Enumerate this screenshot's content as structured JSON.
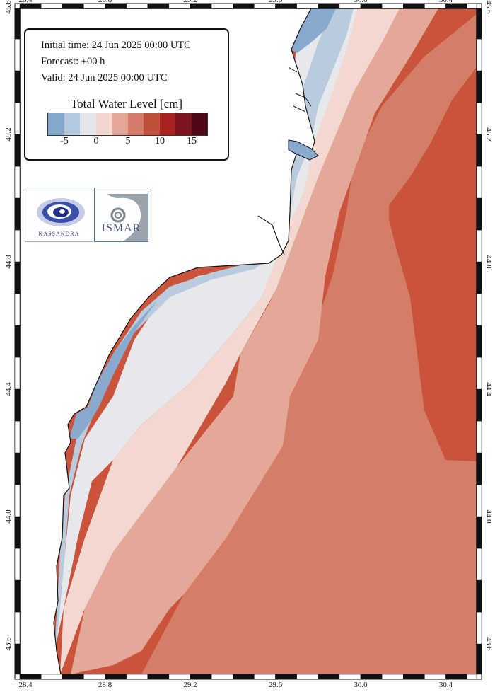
{
  "map": {
    "info_lines": [
      "Initial time: 24 Jun 2025 00:00 UTC",
      "Forecast: +00 h",
      "Valid: 24 Jun 2025 00:00 UTC"
    ],
    "legend_title": "Total Water Level [cm]",
    "colorbar_colors": [
      "#85a9cc",
      "#b4c9dd",
      "#e5e6eb",
      "#f2d7cf",
      "#e4a696",
      "#d37b68",
      "#c04f3b",
      "#a8231f",
      "#7d1422",
      "#4d0a16"
    ],
    "colorbar_labels": [
      "-5",
      "0",
      "5",
      "10",
      "15"
    ],
    "lon_ticks": [
      "28.4",
      "28.8",
      "29.2",
      "29.6",
      "30.0",
      "30.4"
    ],
    "lat_ticks": [
      "43.6",
      "44.0",
      "44.4",
      "44.8",
      "45.2",
      "45.6"
    ],
    "logos": {
      "kassandra": "KASSANDRA",
      "ismar": "ISMAR"
    }
  }
}
